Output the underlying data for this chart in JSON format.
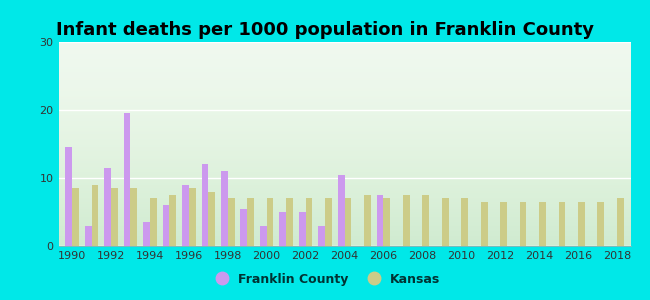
{
  "title": "Infant deaths per 1000 population in Franklin County",
  "years": [
    1990,
    1991,
    1992,
    1993,
    1994,
    1995,
    1996,
    1997,
    1998,
    1999,
    2000,
    2001,
    2002,
    2003,
    2004,
    2005,
    2006,
    2007,
    2008,
    2009,
    2010,
    2011,
    2012,
    2013,
    2014,
    2015,
    2016,
    2017,
    2018
  ],
  "franklin_county": [
    14.5,
    3.0,
    11.5,
    19.5,
    3.5,
    6.0,
    9.0,
    12.0,
    11.0,
    5.5,
    3.0,
    5.0,
    5.0,
    3.0,
    10.5,
    0.0,
    7.5,
    0.0,
    0.0,
    0.0,
    0.0,
    0.0,
    0.0,
    0.0,
    0.0,
    0.0,
    0.0,
    0.0,
    0.0
  ],
  "kansas": [
    8.5,
    9.0,
    8.5,
    8.5,
    7.0,
    7.5,
    8.5,
    8.0,
    7.0,
    7.0,
    7.0,
    7.0,
    7.0,
    7.0,
    7.0,
    7.5,
    7.0,
    7.5,
    7.5,
    7.0,
    7.0,
    6.5,
    6.5,
    6.5,
    6.5,
    6.5,
    6.5,
    6.5,
    7.0
  ],
  "franklin_color": "#cc99ee",
  "kansas_color": "#cccc88",
  "outer_bg": "#00e8e8",
  "ylim": [
    0,
    30
  ],
  "yticks": [
    0,
    10,
    20,
    30
  ],
  "title_fontsize": 13,
  "legend_franklin": "Franklin County",
  "legend_kansas": "Kansas",
  "bar_width": 0.35
}
